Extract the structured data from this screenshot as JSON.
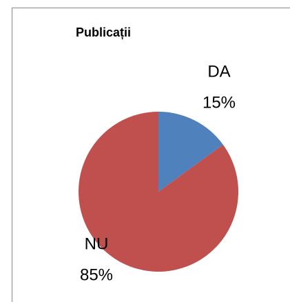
{
  "chart_data": {
    "type": "pie",
    "title": "Publicații",
    "categories": [
      "DA",
      "NU"
    ],
    "values": [
      15,
      85
    ],
    "value_labels": [
      "15%",
      "85%"
    ],
    "colors": [
      "#4f81bd",
      "#c0504d"
    ]
  }
}
